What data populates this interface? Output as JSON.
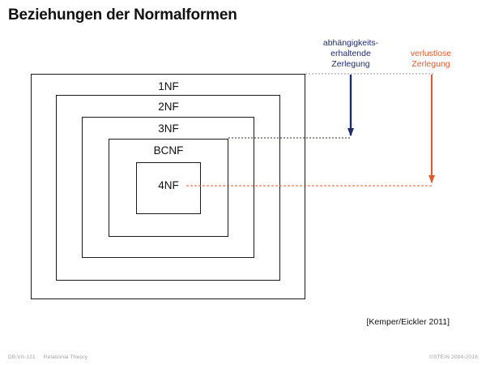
{
  "slide": {
    "title": "Beziehungen der Normalformen"
  },
  "normal_forms": [
    {
      "label": "1NF"
    },
    {
      "label": "2NF"
    },
    {
      "label": "3NF"
    },
    {
      "label": "BCNF"
    },
    {
      "label": "4NF"
    }
  ],
  "decompositions": {
    "dependency_preserving": {
      "lines": [
        "abhängigkeits-",
        "erhaltende",
        "Zerlegung"
      ],
      "color": "#1f2a6b"
    },
    "lossless": {
      "lines": [
        "verlustlose",
        "Zerlegung"
      ],
      "color": "#e05a2a"
    }
  },
  "citation": "[Kemper/Eickler 2011]",
  "footer": {
    "slide_id": "DB:VII-121",
    "topic": "Relational Theory",
    "copyright": "©STEIN 2004-2018"
  }
}
